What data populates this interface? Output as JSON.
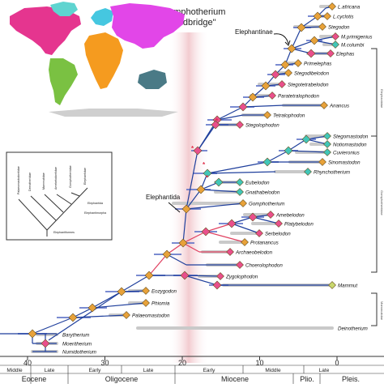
{
  "title": {
    "line1": "\"Gomphotherium",
    "line2": "Landbridge\""
  },
  "clade_labels": {
    "elephantinae": "Elephantinae",
    "elephantida": "Elephantida"
  },
  "map": {
    "region_colors": {
      "north_america": "#e5358f",
      "south_america": "#7ac142",
      "eurasia": "#e246e8",
      "africa": "#f59b1f",
      "greenland": "#5fd4d0",
      "europe": "#45c7e0",
      "australia": "#4a7a86",
      "antarctica": "#cfcfcf"
    }
  },
  "inset_tree": {
    "taxa": [
      "Palaeomastodontidae",
      "Deinotheriidae",
      "Mammutidae",
      "Amebelodontidae",
      "Gomphotheriidae",
      "Elephantidae"
    ],
    "groups": [
      "Elephantida",
      "Elephantimorpha",
      "Elephantiformes"
    ]
  },
  "taxa": {
    "l_africana": "L.africana",
    "l_cyclotis": "L.cyclotis",
    "stegodon": "Stegodon",
    "m_primigenius": "M.primigenius",
    "m_columbi": "M.columbi",
    "elephas": "Elephas",
    "primelephas": "Primelephas",
    "stegodibelodon": "Stegodibelodon",
    "stegotetrabelodon": "Stegotetrabelodon",
    "paratetralophodon": "Paratetralophodon",
    "anancus": "Anancus",
    "tetralophodon": "Tetralophodon",
    "stegolophodon": "Stegolophodon",
    "stegomastodon": "Stegomastodon",
    "notiomastodon": "Notiomastodon",
    "cuvieronius": "Cuvieronius",
    "sinomastodon": "Sinomastodon",
    "rhynchotherium": "Rhynchotherium",
    "eubelodon": "Eubelodon",
    "gnathabelodon": "Gnathabelodon",
    "gomphotherium": "Gomphotherium",
    "amebelodon": "Amebelodon",
    "platybelodon": "Platybelodon",
    "serbelodon": "Serbelodon",
    "protanancus": "Protanancus",
    "archaeobelodon": "Archaeobelodon",
    "choerolophodon": "Choerolophodon",
    "zygolophodon": "Zygolophodon",
    "mammut": "Mammut",
    "eozygodon": "Eozygodon",
    "phiomia": "Phiomia",
    "palaeomastodon": "Palaeomastodon",
    "deinotherium": "Deinotherium",
    "barytherium": "Barytherium",
    "moeritherium": "Moeritherium",
    "numidotherium": "Numidotherium"
  },
  "time_axis": {
    "ticks": [
      "40",
      "30",
      "20",
      "10",
      "0"
    ],
    "subepochs": [
      "Middle",
      "Late",
      "Early",
      "Late",
      "Early",
      "Middle",
      "Late"
    ],
    "epochs": [
      "Eocene",
      "Oligocene",
      "Miocene",
      "Plio.",
      "Pleis."
    ]
  },
  "side_labels": {
    "elephantidae": "Elephantidae",
    "gomphotheriidae": "Gomphotheriidae",
    "mammutidae": "Mammutidae"
  },
  "colors": {
    "node_orange": "#e8a23a",
    "node_teal": "#41c6b8",
    "node_pink": "#e94f8c",
    "branch_blue": "#1f3f9c",
    "branch_red": "#e04060",
    "range_gray": "#c9c9c9",
    "landbridge_band": "#e8a0a8"
  }
}
